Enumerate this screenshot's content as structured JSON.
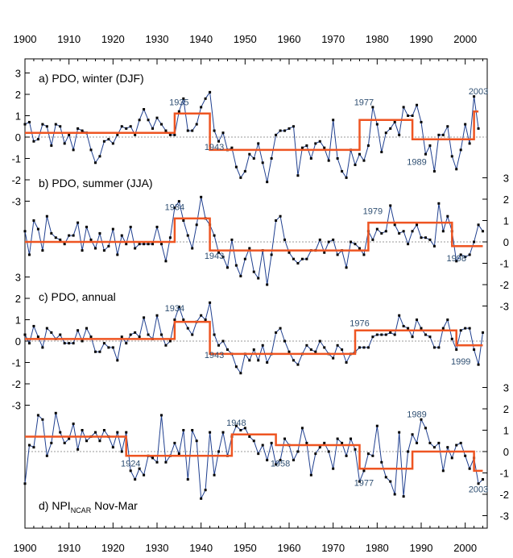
{
  "chart_data": {
    "type": "line",
    "x_axis": {
      "xlim": [
        1900,
        2005
      ],
      "ticks": [
        1900,
        1910,
        1920,
        1930,
        1940,
        1950,
        1960,
        1970,
        1980,
        1990,
        2000
      ],
      "position": "top and bottom"
    },
    "colors": {
      "series_line": "#1f3f8f",
      "series_marker": "#000000",
      "regime_line": "#ee5522",
      "zero_line": "#999999"
    },
    "panels": [
      {
        "label": "a) PDO, winter (DJF)",
        "axis_side": "left",
        "yticks": [
          -3,
          -2,
          -1,
          0,
          1,
          2,
          3
        ],
        "ylim": [
          -3,
          3
        ],
        "x_start": 1900,
        "values": [
          0.6,
          0.7,
          -0.2,
          -0.1,
          0.6,
          0.5,
          -0.4,
          0.6,
          0.5,
          -0.3,
          0.1,
          -0.6,
          0.4,
          0.3,
          0.2,
          -0.6,
          -1.2,
          -0.9,
          -0.2,
          -0.1,
          -0.3,
          0.1,
          0.5,
          0.4,
          0.5,
          0.1,
          0.8,
          1.3,
          0.8,
          0.4,
          0.9,
          0.6,
          0.3,
          0.1,
          0.1,
          1.2,
          1.8,
          0.3,
          0.3,
          0.6,
          1.4,
          1.8,
          2.1,
          0.3,
          -0.2,
          0.2,
          -0.6,
          -0.5,
          -1.4,
          -1.9,
          -1.6,
          -0.8,
          -1.0,
          -0.3,
          -1.2,
          -2.1,
          -1.0,
          0.1,
          0.3,
          0.3,
          0.4,
          0.5,
          -1.8,
          -0.5,
          -0.4,
          -1.0,
          -0.3,
          -0.2,
          -0.5,
          -1.1,
          0.8,
          -1.0,
          -1.6,
          -1.9,
          -0.6,
          -1.3,
          -0.8,
          -1.1,
          -0.4,
          1.4,
          0.6,
          -0.7,
          0.2,
          0.4,
          0.7,
          0.1,
          1.4,
          1.0,
          1.0,
          1.5,
          0.7,
          -0.8,
          -0.4,
          -1.6,
          0.1,
          0.1,
          0.5,
          -0.9,
          -1.5,
          -0.6,
          0.6,
          -0.3,
          1.9,
          0.4
        ],
        "regimes": [
          {
            "start": 1900,
            "end": 1934,
            "value": 0.2
          },
          {
            "start": 1934,
            "end": 1942,
            "value": 1.1
          },
          {
            "start": 1942,
            "end": 1976,
            "value": -0.6
          },
          {
            "start": 1976,
            "end": 1988,
            "value": 0.8
          },
          {
            "start": 1988,
            "end": 2002,
            "value": -0.1
          },
          {
            "start": 2002,
            "end": 2003,
            "value": 1.2
          }
        ],
        "annotations": [
          {
            "text": "1935",
            "x": 1935,
            "y": 1.5
          },
          {
            "text": "1943",
            "x": 1943,
            "y": -0.6
          },
          {
            "text": "1977",
            "x": 1977,
            "y": 1.5
          },
          {
            "text": "1989",
            "x": 1989,
            "y": -1.3
          },
          {
            "text": "2003",
            "x": 2003,
            "y": 2.0
          }
        ]
      },
      {
        "label": "b) PDO, summer (JJA)",
        "axis_side": "right",
        "yticks": [
          -3,
          -2,
          -1,
          0,
          1,
          2,
          3
        ],
        "ylim": [
          -3,
          3
        ],
        "x_start": 1900,
        "values": [
          0.5,
          -0.6,
          1.0,
          0.6,
          -0.4,
          1.2,
          0.4,
          0.2,
          0.1,
          -0.1,
          0.3,
          0.3,
          0.9,
          -0.4,
          0.7,
          0.1,
          -0.3,
          0.4,
          -0.4,
          -0.2,
          0.6,
          -0.6,
          0.3,
          -0.1,
          0.7,
          -0.3,
          -0.1,
          -0.1,
          -0.1,
          -0.1,
          0.7,
          -0.1,
          -0.9,
          0.2,
          1.6,
          1.9,
          1.0,
          0.3,
          -0.3,
          0.8,
          2.1,
          1.1,
          0.8,
          0.3,
          -0.5,
          -0.7,
          -1.2,
          0.1,
          -1.1,
          -1.6,
          -0.8,
          -0.3,
          -1.4,
          -1.7,
          -0.4,
          -2.0,
          -0.6,
          1.0,
          1.2,
          0.1,
          -0.5,
          -0.8,
          -1.0,
          -0.8,
          -0.8,
          -0.4,
          -0.4,
          0.1,
          -0.5,
          0.0,
          0.1,
          -0.6,
          -0.4,
          -1.2,
          0.0,
          -0.1,
          -0.3,
          -0.6,
          0.5,
          0.1,
          0.6,
          0.4,
          0.5,
          1.7,
          0.8,
          0.4,
          0.5,
          -0.1,
          0.5,
          0.8,
          0.2,
          0.2,
          0.1,
          -0.2,
          1.8,
          0.5,
          1.2,
          0.5,
          -0.9,
          -0.6,
          -0.7,
          -0.6,
          0.0,
          0.8,
          0.5
        ],
        "regimes": [
          {
            "start": 1900,
            "end": 1934,
            "value": 0.0
          },
          {
            "start": 1934,
            "end": 1942,
            "value": 1.1
          },
          {
            "start": 1942,
            "end": 1978,
            "value": -0.4
          },
          {
            "start": 1978,
            "end": 1997,
            "value": 0.9
          },
          {
            "start": 1997,
            "end": 2004,
            "value": -0.2
          }
        ],
        "annotations": [
          {
            "text": "1934",
            "x": 1934,
            "y": 1.5
          },
          {
            "text": "1943",
            "x": 1943,
            "y": -0.8
          },
          {
            "text": "1979",
            "x": 1979,
            "y": 1.3
          },
          {
            "text": "1998",
            "x": 1998,
            "y": -0.9
          }
        ]
      },
      {
        "label": "c) PDO, annual",
        "axis_side": "left",
        "yticks": [
          -3,
          -2,
          -1,
          0,
          1,
          2,
          3
        ],
        "ylim": [
          -3,
          3
        ],
        "x_start": 1900,
        "values": [
          0.3,
          -0.1,
          0.7,
          0.2,
          -0.3,
          0.6,
          0.4,
          0.1,
          0.3,
          -0.1,
          -0.1,
          -0.1,
          0.5,
          0.0,
          0.6,
          0.2,
          -0.5,
          -0.5,
          -0.1,
          -0.3,
          -0.3,
          -0.9,
          0.2,
          -0.1,
          0.3,
          0.4,
          0.2,
          1.1,
          0.3,
          0.1,
          1.2,
          0.3,
          -0.2,
          0.0,
          1.0,
          1.6,
          1.0,
          0.6,
          0.3,
          0.9,
          1.2,
          1.0,
          1.8,
          0.3,
          -0.2,
          0.0,
          -0.4,
          -0.6,
          -1.2,
          -1.5,
          -0.6,
          -0.9,
          -0.4,
          -0.9,
          -0.2,
          -1.0,
          -0.6,
          0.4,
          0.6,
          0.0,
          -0.5,
          -0.9,
          -1.1,
          -0.6,
          -0.2,
          -0.4,
          -0.5,
          0.0,
          -0.3,
          -0.6,
          -0.8,
          -0.2,
          -0.4,
          -1.0,
          -0.6,
          -0.5,
          -0.3,
          -0.3,
          -0.3,
          0.2,
          0.3,
          0.3,
          0.3,
          0.4,
          0.3,
          1.2,
          0.7,
          0.6,
          0.2,
          1.0,
          0.6,
          0.3,
          0.2,
          -0.3,
          -0.3,
          0.6,
          1.0,
          0.1,
          -0.4,
          0.5,
          0.6,
          0.6,
          -0.4,
          -1.1,
          0.4
        ],
        "regimes": [
          {
            "start": 1900,
            "end": 1934,
            "value": 0.1
          },
          {
            "start": 1934,
            "end": 1942,
            "value": 0.9
          },
          {
            "start": 1942,
            "end": 1975,
            "value": -0.6
          },
          {
            "start": 1975,
            "end": 1998,
            "value": 0.5
          },
          {
            "start": 1998,
            "end": 2004,
            "value": -0.2
          }
        ],
        "annotations": [
          {
            "text": "1934",
            "x": 1934,
            "y": 1.4
          },
          {
            "text": "1943",
            "x": 1943,
            "y": -0.8
          },
          {
            "text": "1976",
            "x": 1976,
            "y": 0.7
          },
          {
            "text": "1999",
            "x": 1999,
            "y": -1.1
          }
        ]
      },
      {
        "label": "d) NPI",
        "label_subscript": "NCAR",
        "label_suffix": "Nov-Mar",
        "axis_side": "right",
        "yticks": [
          -3,
          -2,
          -1,
          0,
          1,
          2,
          3
        ],
        "ylim": [
          -3,
          3
        ],
        "x_start": 1900,
        "values": [
          -1.5,
          0.3,
          0.2,
          1.7,
          1.5,
          -0.2,
          0.4,
          1.8,
          0.9,
          0.4,
          0.6,
          1.3,
          0.1,
          1.0,
          0.5,
          0.7,
          0.9,
          0.5,
          1.0,
          0.7,
          0.2,
          0.9,
          0.0,
          0.9,
          -0.9,
          -1.3,
          -0.8,
          -1.1,
          -0.2,
          -0.3,
          -0.5,
          1.7,
          -0.5,
          -0.2,
          0.4,
          -0.1,
          1.0,
          -1.3,
          1.0,
          0.5,
          -2.2,
          -1.8,
          0.9,
          -1.1,
          0.0,
          0.9,
          -0.2,
          0.7,
          1.2,
          1.0,
          1.1,
          0.7,
          0.5,
          -0.1,
          0.3,
          -0.4,
          0.4,
          -0.6,
          -0.4,
          0.6,
          0.3,
          -0.4,
          0.0,
          1.1,
          0.4,
          -1.1,
          -0.1,
          0.2,
          0.4,
          0.0,
          -0.8,
          0.6,
          0.4,
          -0.2,
          0.6,
          0.1,
          -1.4,
          -0.9,
          -0.1,
          -0.2,
          1.2,
          -0.5,
          -1.2,
          -1.4,
          -2.0,
          0.9,
          -2.1,
          0.0,
          0.8,
          0.4,
          1.5,
          1.1,
          0.4,
          0.2,
          0.4,
          -0.9,
          0.2,
          -0.3,
          0.3,
          0.4,
          -0.2,
          -0.8,
          -0.3,
          -1.5,
          -1.3
        ],
        "regimes": [
          {
            "start": 1900,
            "end": 1923,
            "value": 0.7
          },
          {
            "start": 1923,
            "end": 1947,
            "value": -0.2
          },
          {
            "start": 1947,
            "end": 1957,
            "value": 0.8
          },
          {
            "start": 1957,
            "end": 1976,
            "value": 0.3
          },
          {
            "start": 1976,
            "end": 1988,
            "value": -0.8
          },
          {
            "start": 1988,
            "end": 2002,
            "value": 0.0
          },
          {
            "start": 2002,
            "end": 2004,
            "value": -0.9
          }
        ],
        "annotations": [
          {
            "text": "1924",
            "x": 1924,
            "y": -0.7
          },
          {
            "text": "1948",
            "x": 1948,
            "y": 1.2
          },
          {
            "text": "1958",
            "x": 1958,
            "y": -0.7
          },
          {
            "text": "1977",
            "x": 1977,
            "y": -1.6
          },
          {
            "text": "1989",
            "x": 1989,
            "y": 1.6
          },
          {
            "text": "2003",
            "x": 2003,
            "y": -1.9
          }
        ]
      }
    ]
  }
}
